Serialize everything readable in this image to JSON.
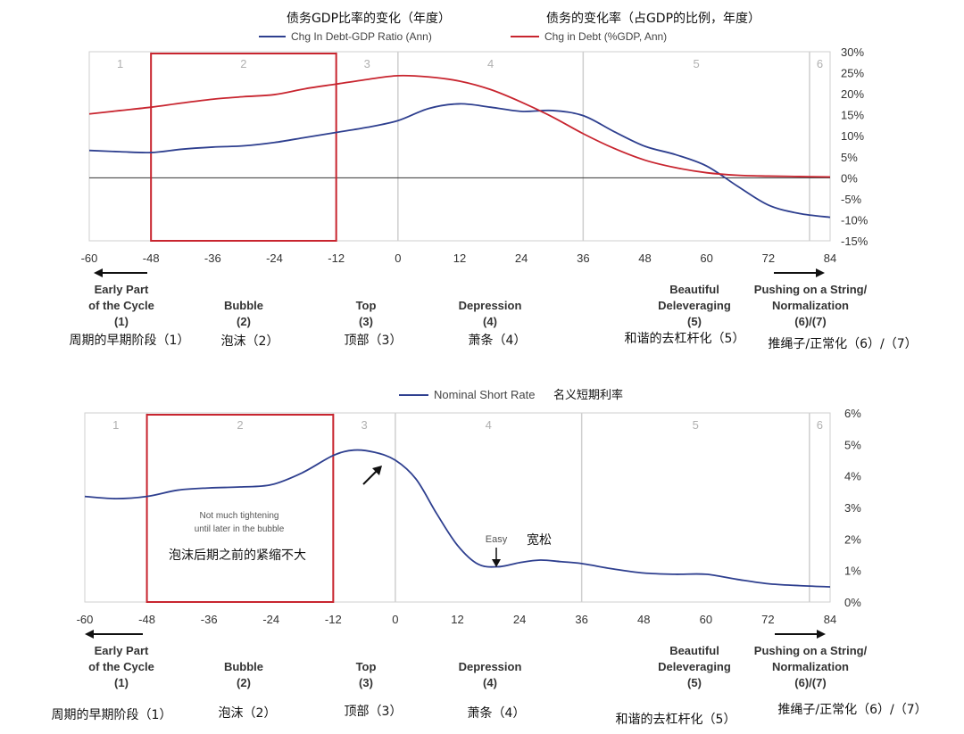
{
  "chart_data": [
    {
      "type": "line",
      "title_zh_left": "债务GDP比率的变化（年度）",
      "title_zh_right": "债务的变化率（占GDP的比例，年度）",
      "x_ticks": [
        "-60",
        "-48",
        "-36",
        "-24",
        "-12",
        "0",
        "12",
        "24",
        "36",
        "48",
        "60",
        "72",
        "84"
      ],
      "xlim": [
        -60,
        84
      ],
      "ylim": [
        -15,
        30
      ],
      "y_ticks": [
        "30%",
        "25%",
        "20%",
        "15%",
        "10%",
        "5%",
        "0%",
        "-5%",
        "-10%",
        "-15%"
      ],
      "phases": [
        {
          "label": "1",
          "start": -60,
          "end": -48
        },
        {
          "label": "2",
          "start": -48,
          "end": -12
        },
        {
          "label": "3",
          "start": -12,
          "end": 0
        },
        {
          "label": "4",
          "start": 0,
          "end": 36
        },
        {
          "label": "5",
          "start": 36,
          "end": 80
        },
        {
          "label": "6",
          "start": 80,
          "end": 84
        }
      ],
      "highlight_box": [
        -48,
        -12
      ],
      "series": [
        {
          "name": "Chg In Debt-GDP Ratio (Ann)",
          "color": "#2e3f8f",
          "x": [
            -60,
            -54,
            -48,
            -42,
            -36,
            -30,
            -24,
            -18,
            -12,
            -6,
            0,
            6,
            12,
            18,
            24,
            30,
            36,
            42,
            48,
            54,
            60,
            66,
            72,
            78,
            84
          ],
          "y": [
            6.5,
            6.2,
            6.0,
            6.8,
            7.3,
            7.6,
            8.4,
            9.6,
            10.8,
            12.0,
            13.6,
            16.5,
            17.6,
            16.8,
            15.8,
            16.0,
            14.8,
            11.0,
            7.5,
            5.5,
            2.8,
            -2.0,
            -6.5,
            -8.5,
            -9.4
          ]
        },
        {
          "name": "Chg in Debt (%GDP, Ann)",
          "color": "#c8252f",
          "x": [
            -60,
            -54,
            -48,
            -42,
            -36,
            -30,
            -24,
            -18,
            -12,
            -6,
            0,
            6,
            12,
            18,
            24,
            30,
            36,
            42,
            48,
            54,
            60,
            66,
            72,
            78,
            84
          ],
          "y": [
            15.2,
            16.0,
            16.8,
            17.8,
            18.7,
            19.3,
            19.8,
            21.2,
            22.3,
            23.4,
            24.3,
            24.0,
            23.0,
            21.0,
            18.0,
            14.5,
            10.5,
            7.0,
            4.2,
            2.4,
            1.2,
            0.6,
            0.4,
            0.3,
            0.2
          ]
        }
      ],
      "zh_labels": [
        "周期的早期阶段（1）",
        "泡沫（2）",
        "顶部（3）",
        "萧条（4）",
        "和谐的去杠杆化（5）",
        "推绳子/正常化（6）/（7）"
      ]
    },
    {
      "type": "line",
      "x_ticks": [
        "-60",
        "-48",
        "-36",
        "-24",
        "-12",
        "0",
        "12",
        "24",
        "36",
        "48",
        "60",
        "72",
        "84"
      ],
      "xlim": [
        -60,
        84
      ],
      "ylim": [
        0,
        6
      ],
      "y_ticks": [
        "6%",
        "5%",
        "4%",
        "3%",
        "2%",
        "1%",
        "0%"
      ],
      "phases": [
        {
          "label": "1",
          "start": -60,
          "end": -48
        },
        {
          "label": "2",
          "start": -48,
          "end": -12
        },
        {
          "label": "3",
          "start": -12,
          "end": 0
        },
        {
          "label": "4",
          "start": 0,
          "end": 36
        },
        {
          "label": "5",
          "start": 36,
          "end": 80
        },
        {
          "label": "6",
          "start": 80,
          "end": 84
        }
      ],
      "highlight_box": [
        -48,
        -12
      ],
      "series": [
        {
          "name": "Nominal Short Rate",
          "name_zh": "名义短期利率",
          "color": "#2e3f8f",
          "x": [
            -60,
            -54,
            -48,
            -42,
            -36,
            -30,
            -24,
            -18,
            -12,
            -8,
            -4,
            0,
            4,
            8,
            12,
            16,
            20,
            24,
            28,
            32,
            36,
            42,
            48,
            54,
            60,
            66,
            72,
            78,
            84
          ],
          "y": [
            3.35,
            3.28,
            3.35,
            3.55,
            3.62,
            3.65,
            3.72,
            4.1,
            4.65,
            4.82,
            4.75,
            4.5,
            3.9,
            2.8,
            1.8,
            1.2,
            1.12,
            1.25,
            1.33,
            1.28,
            1.22,
            1.05,
            0.92,
            0.88,
            0.88,
            0.72,
            0.58,
            0.52,
            0.48
          ]
        }
      ],
      "annotations": {
        "tightening_line1": "Not much tightening",
        "tightening_line2": "until later in the bubble",
        "tightening_zh": "泡沫后期之前的紧缩不大",
        "easy": "Easy",
        "easy_zh": "宽松"
      },
      "zh_labels": [
        "周期的早期阶段（1）",
        "泡沫（2）",
        "顶部（3）",
        "萧条（4）",
        "和谐的去杠杆化（5）",
        "推绳子/正常化（6）/（7）"
      ]
    }
  ],
  "phase_labels": [
    {
      "line1": "Early Part",
      "line2": "of the Cycle",
      "num": "(1)"
    },
    {
      "line1": "Bubble",
      "num": "(2)"
    },
    {
      "line1": "Top",
      "num": "(3)"
    },
    {
      "line1": "Depression",
      "num": "(4)"
    },
    {
      "line1": "Beautiful",
      "line2": "Deleveraging",
      "num": "(5)"
    },
    {
      "line1": "Pushing on a String/",
      "line2": "Normalization",
      "num": "(6)/(7)"
    }
  ]
}
